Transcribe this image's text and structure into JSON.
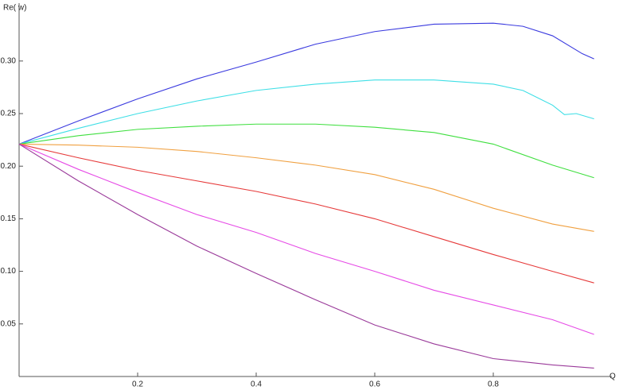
{
  "chart_data": {
    "type": "line",
    "x_label": "Q",
    "y_label": "Re( w)",
    "xlim": [
      0,
      1.0
    ],
    "ylim": [
      0,
      0.355
    ],
    "xticks": [
      0.2,
      0.4,
      0.6,
      0.8
    ],
    "yticks": [
      0.05,
      {
        "value": 0.1,
        "label": "0.10"
      },
      0.15,
      {
        "value": 0.2,
        "label": "0.20"
      },
      0.25,
      {
        "value": 0.3,
        "label": "0.30"
      }
    ],
    "series": [
      {
        "color": "#3a3adf",
        "x": [
          0,
          0.1,
          0.2,
          0.3,
          0.4,
          0.5,
          0.6,
          0.7,
          0.8,
          0.85,
          0.9,
          0.95,
          0.97
        ],
        "values": [
          0.221,
          0.243,
          0.264,
          0.283,
          0.299,
          0.316,
          0.328,
          0.335,
          0.336,
          0.333,
          0.324,
          0.307,
          0.302
        ]
      },
      {
        "color": "#3fdfe6",
        "x": [
          0,
          0.1,
          0.2,
          0.3,
          0.4,
          0.5,
          0.6,
          0.7,
          0.8,
          0.85,
          0.9,
          0.92,
          0.94,
          0.97
        ],
        "values": [
          0.221,
          0.236,
          0.25,
          0.262,
          0.272,
          0.278,
          0.282,
          0.282,
          0.278,
          0.272,
          0.258,
          0.249,
          0.25,
          0.245
        ]
      },
      {
        "color": "#3fdf3f",
        "x": [
          0,
          0.1,
          0.2,
          0.3,
          0.4,
          0.5,
          0.6,
          0.7,
          0.8,
          0.9,
          0.97
        ],
        "values": [
          0.221,
          0.229,
          0.235,
          0.238,
          0.24,
          0.24,
          0.237,
          0.232,
          0.221,
          0.201,
          0.189
        ]
      },
      {
        "color": "#f0a040",
        "x": [
          0,
          0.1,
          0.2,
          0.3,
          0.4,
          0.5,
          0.6,
          0.7,
          0.8,
          0.9,
          0.97
        ],
        "values": [
          0.221,
          0.22,
          0.218,
          0.214,
          0.208,
          0.201,
          0.192,
          0.178,
          0.16,
          0.145,
          0.138
        ]
      },
      {
        "color": "#e63a3a",
        "x": [
          0,
          0.1,
          0.2,
          0.3,
          0.4,
          0.5,
          0.6,
          0.7,
          0.8,
          0.9,
          0.97
        ],
        "values": [
          0.221,
          0.208,
          0.196,
          0.186,
          0.176,
          0.164,
          0.15,
          0.133,
          0.116,
          0.1,
          0.089
        ]
      },
      {
        "color": "#e64ae6",
        "x": [
          0,
          0.1,
          0.2,
          0.3,
          0.4,
          0.5,
          0.6,
          0.7,
          0.8,
          0.9,
          0.97
        ],
        "values": [
          0.221,
          0.197,
          0.175,
          0.154,
          0.137,
          0.117,
          0.1,
          0.082,
          0.068,
          0.054,
          0.04
        ]
      },
      {
        "color": "#9a3a9a",
        "x": [
          0,
          0.1,
          0.2,
          0.3,
          0.4,
          0.5,
          0.6,
          0.7,
          0.8,
          0.9,
          0.97
        ],
        "values": [
          0.221,
          0.186,
          0.154,
          0.124,
          0.098,
          0.073,
          0.049,
          0.031,
          0.017,
          0.011,
          0.008
        ]
      }
    ]
  }
}
